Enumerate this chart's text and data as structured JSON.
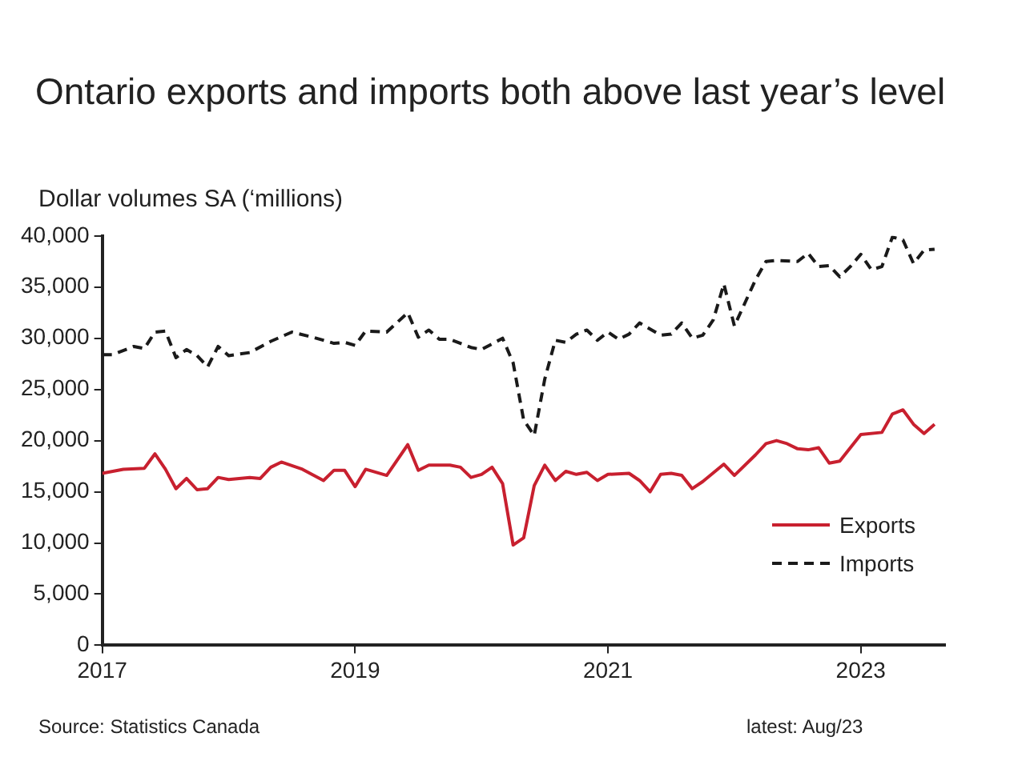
{
  "chart_data": {
    "type": "line",
    "title": "Ontario exports and imports both above last year’s level",
    "ylabel": "Dollar volumes SA (‘millions)",
    "xlim": [
      "2017-01",
      "2023-09"
    ],
    "xticks": [
      {
        "value": "2017-01",
        "label": "2017"
      },
      {
        "value": "2019-01",
        "label": "2019"
      },
      {
        "value": "2021-01",
        "label": "2021"
      },
      {
        "value": "2023-01",
        "label": "2023"
      }
    ],
    "ylim": [
      0,
      40000
    ],
    "yticks": [
      0,
      {
        "value": 5000,
        "label": "5,000"
      },
      {
        "value": 10000,
        "label": "10,000"
      },
      {
        "value": 15000,
        "label": "15,000"
      },
      {
        "value": 20000,
        "label": "20,000"
      },
      {
        "value": 25000,
        "label": "25,000"
      },
      {
        "value": 30000,
        "label": "30,000"
      },
      {
        "value": 35000,
        "label": "35,000"
      },
      {
        "value": 40000,
        "label": "40,000"
      }
    ],
    "grid": false,
    "legend": "bottom right",
    "marker": "none",
    "annotations": [
      "Source: Statistics Canada",
      "latest: Aug/23"
    ],
    "series": [
      {
        "name": "Exports",
        "color": "#c8202f",
        "line_style": "solid",
        "x": [
          "2017-01",
          "2017-03",
          "2017-05",
          "2017-06",
          "2017-07",
          "2017-08",
          "2017-09",
          "2017-10",
          "2017-11",
          "2017-12",
          "2018-01",
          "2018-03",
          "2018-04",
          "2018-05",
          "2018-06",
          "2018-08",
          "2018-10",
          "2018-11",
          "2018-12",
          "2019-01",
          "2019-02",
          "2019-04",
          "2019-06",
          "2019-07",
          "2019-08",
          "2019-10",
          "2019-11",
          "2019-12",
          "2020-01",
          "2020-02",
          "2020-03",
          "2020-04",
          "2020-05",
          "2020-06",
          "2020-07",
          "2020-08",
          "2020-09",
          "2020-10",
          "2020-11",
          "2020-12",
          "2021-01",
          "2021-03",
          "2021-04",
          "2021-05",
          "2021-06",
          "2021-07",
          "2021-08",
          "2021-09",
          "2021-10",
          "2021-12",
          "2022-01",
          "2022-03",
          "2022-04",
          "2022-05",
          "2022-06",
          "2022-07",
          "2022-08",
          "2022-09",
          "2022-10",
          "2022-11",
          "2023-01",
          "2023-03",
          "2023-04",
          "2023-05",
          "2023-06",
          "2023-07",
          "2023-08"
        ],
        "values": [
          16800,
          17200,
          17300,
          18700,
          17200,
          15300,
          16300,
          15200,
          15300,
          16400,
          16200,
          16400,
          16300,
          17400,
          17900,
          17200,
          16100,
          17100,
          17100,
          15500,
          17200,
          16600,
          19600,
          17100,
          17600,
          17600,
          17400,
          16400,
          16700,
          17400,
          15800,
          9800,
          10500,
          15600,
          17600,
          16100,
          17000,
          16700,
          16900,
          16100,
          16700,
          16800,
          16100,
          15000,
          16700,
          16800,
          16600,
          15300,
          16000,
          17700,
          16600,
          18600,
          19700,
          20000,
          19700,
          19200,
          19100,
          19300,
          17800,
          18000,
          20600,
          20800,
          22600,
          23000,
          21600,
          20700,
          21600
        ]
      },
      {
        "name": "Imports",
        "color": "#1a1a1a",
        "line_style": "dashed",
        "x": [
          "2017-01",
          "2017-02",
          "2017-04",
          "2017-05",
          "2017-06",
          "2017-07",
          "2017-08",
          "2017-09",
          "2017-10",
          "2017-11",
          "2017-12",
          "2018-01",
          "2018-03",
          "2018-05",
          "2018-07",
          "2018-09",
          "2018-11",
          "2018-12",
          "2019-01",
          "2019-02",
          "2019-04",
          "2019-06",
          "2019-07",
          "2019-08",
          "2019-09",
          "2019-10",
          "2019-12",
          "2020-01",
          "2020-03",
          "2020-04",
          "2020-05",
          "2020-06",
          "2020-07",
          "2020-08",
          "2020-09",
          "2020-10",
          "2020-11",
          "2020-12",
          "2021-01",
          "2021-02",
          "2021-03",
          "2021-04",
          "2021-05",
          "2021-06",
          "2021-07",
          "2021-08",
          "2021-09",
          "2021-10",
          "2021-11",
          "2021-12",
          "2022-01",
          "2022-03",
          "2022-04",
          "2022-05",
          "2022-07",
          "2022-08",
          "2022-09",
          "2022-10",
          "2022-11",
          "2022-12",
          "2023-01",
          "2023-02",
          "2023-03",
          "2023-04",
          "2023-05",
          "2023-06",
          "2023-07",
          "2023-08"
        ],
        "values": [
          28400,
          28400,
          29200,
          29000,
          30600,
          30700,
          28100,
          28900,
          28300,
          27200,
          29200,
          28300,
          28600,
          29700,
          30600,
          30100,
          29500,
          29600,
          29300,
          30700,
          30600,
          32500,
          30100,
          30800,
          29900,
          29900,
          29100,
          28900,
          30000,
          27600,
          22000,
          20500,
          26000,
          29800,
          29600,
          30400,
          30800,
          29800,
          30600,
          29900,
          30400,
          31500,
          30900,
          30300,
          30400,
          31500,
          30000,
          30300,
          31800,
          35300,
          31200,
          35700,
          37500,
          37600,
          37500,
          38300,
          37000,
          37100,
          36000,
          37000,
          38200,
          36700,
          37000,
          39900,
          39600,
          37300,
          38600,
          38700
        ]
      }
    ]
  }
}
